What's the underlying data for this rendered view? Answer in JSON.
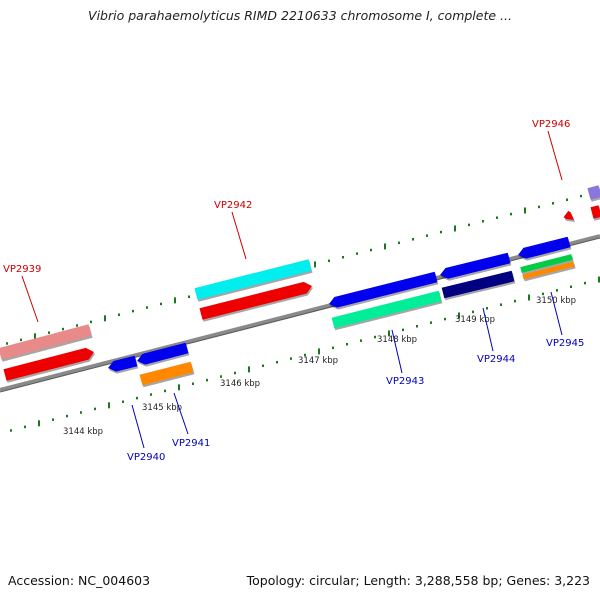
{
  "title": "Vibrio parahaemolyticus RIMD 2210633 chromosome I, complete ...",
  "footer": {
    "accession": "Accession: NC_004603",
    "summary": "Topology: circular; Length: 3,288,558 bp; Genes: 3,223"
  },
  "colors": {
    "backbone": "#888888",
    "tick": "#1a7a1a",
    "top_label": "#cc0000",
    "bottom_label": "#0000bb"
  },
  "scale_labels": [
    "3144 kbp",
    "3145 kbp",
    "3146 kbp",
    "3147 kbp",
    "3148 kbp",
    "3149 kbp",
    "3150 kbp"
  ],
  "genes": [
    {
      "id": "VP2939",
      "strand": "top",
      "color": "#cc0000"
    },
    {
      "id": "VP2940",
      "strand": "bottom",
      "color": "#0000bb"
    },
    {
      "id": "VP2941",
      "strand": "bottom",
      "color": "#0000bb"
    },
    {
      "id": "VP2942",
      "strand": "top",
      "color": "#cc0000"
    },
    {
      "id": "VP2943",
      "strand": "bottom",
      "color": "#0000bb"
    },
    {
      "id": "VP2944",
      "strand": "bottom",
      "color": "#0000bb"
    },
    {
      "id": "VP2945",
      "strand": "bottom",
      "color": "#0000bb"
    },
    {
      "id": "VP2946",
      "strand": "top",
      "color": "#cc0000"
    }
  ]
}
